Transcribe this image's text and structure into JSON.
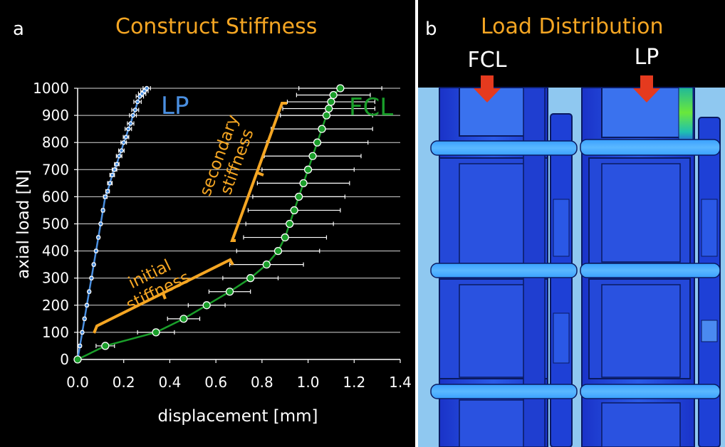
{
  "panel_a": {
    "letter": "a",
    "title": "Construct Stiffness"
  },
  "panel_b": {
    "letter": "b",
    "title": "Load Distribution",
    "labels": [
      "FCL",
      "LP"
    ]
  },
  "colors": {
    "title": "#f5a623",
    "lp": "#4a8fe0",
    "fcl": "#1a9e2a",
    "annotation": "#f5a623",
    "grid": "#ffffff",
    "arrow": "#e53a1e",
    "fea_bg": "#8fc8f0",
    "fea_part": "#1a3fd0"
  },
  "chart_data": {
    "type": "line",
    "xlabel": "displacement [mm]",
    "ylabel": "axial load [N]",
    "xlim": [
      0,
      1.4
    ],
    "ylim": [
      0,
      1000
    ],
    "x_ticks": [
      "0.0",
      "0.2",
      "0.4",
      "0.6",
      "0.8",
      "1.0",
      "1.2",
      "1.4"
    ],
    "y_ticks": [
      "0",
      "100",
      "200",
      "300",
      "400",
      "500",
      "600",
      "700",
      "800",
      "900",
      "1000"
    ],
    "grid": "horizontal",
    "series": [
      {
        "name": "LP",
        "x": [
          0.0,
          0.01,
          0.02,
          0.03,
          0.04,
          0.05,
          0.06,
          0.07,
          0.08,
          0.09,
          0.1,
          0.11,
          0.12,
          0.13,
          0.14,
          0.15,
          0.16,
          0.17,
          0.18,
          0.19,
          0.2,
          0.21,
          0.22,
          0.23,
          0.24,
          0.25,
          0.26,
          0.27,
          0.28,
          0.29,
          0.3
        ],
        "y": [
          0,
          50,
          100,
          150,
          200,
          250,
          300,
          350,
          400,
          450,
          500,
          550,
          600,
          620,
          650,
          680,
          700,
          720,
          750,
          770,
          800,
          820,
          850,
          870,
          900,
          920,
          950,
          970,
          980,
          990,
          1000
        ],
        "err": [
          0.005,
          0.005,
          0.005,
          0.005,
          0.005,
          0.005,
          0.005,
          0.005,
          0.005,
          0.005,
          0.005,
          0.006,
          0.008,
          0.008,
          0.01,
          0.01,
          0.01,
          0.01,
          0.012,
          0.012,
          0.012,
          0.012,
          0.014,
          0.014,
          0.015,
          0.015,
          0.016,
          0.016,
          0.016,
          0.016,
          0.016
        ]
      },
      {
        "name": "FCL",
        "x": [
          0.0,
          0.12,
          0.34,
          0.46,
          0.56,
          0.66,
          0.75,
          0.82,
          0.87,
          0.9,
          0.92,
          0.94,
          0.96,
          0.98,
          1.0,
          1.02,
          1.04,
          1.06,
          1.08,
          1.09,
          1.1,
          1.11,
          1.14
        ],
        "y": [
          0,
          50,
          100,
          150,
          200,
          250,
          300,
          350,
          400,
          450,
          500,
          550,
          600,
          650,
          700,
          750,
          800,
          850,
          900,
          925,
          950,
          975,
          1000
        ],
        "err": [
          0.0,
          0.04,
          0.08,
          0.07,
          0.08,
          0.09,
          0.12,
          0.16,
          0.18,
          0.18,
          0.19,
          0.2,
          0.2,
          0.2,
          0.2,
          0.21,
          0.22,
          0.22,
          0.2,
          0.2,
          0.19,
          0.16,
          0.18
        ]
      }
    ],
    "annotations": {
      "initial": "initial stiffness",
      "secondary": "secondary stiffness"
    }
  }
}
